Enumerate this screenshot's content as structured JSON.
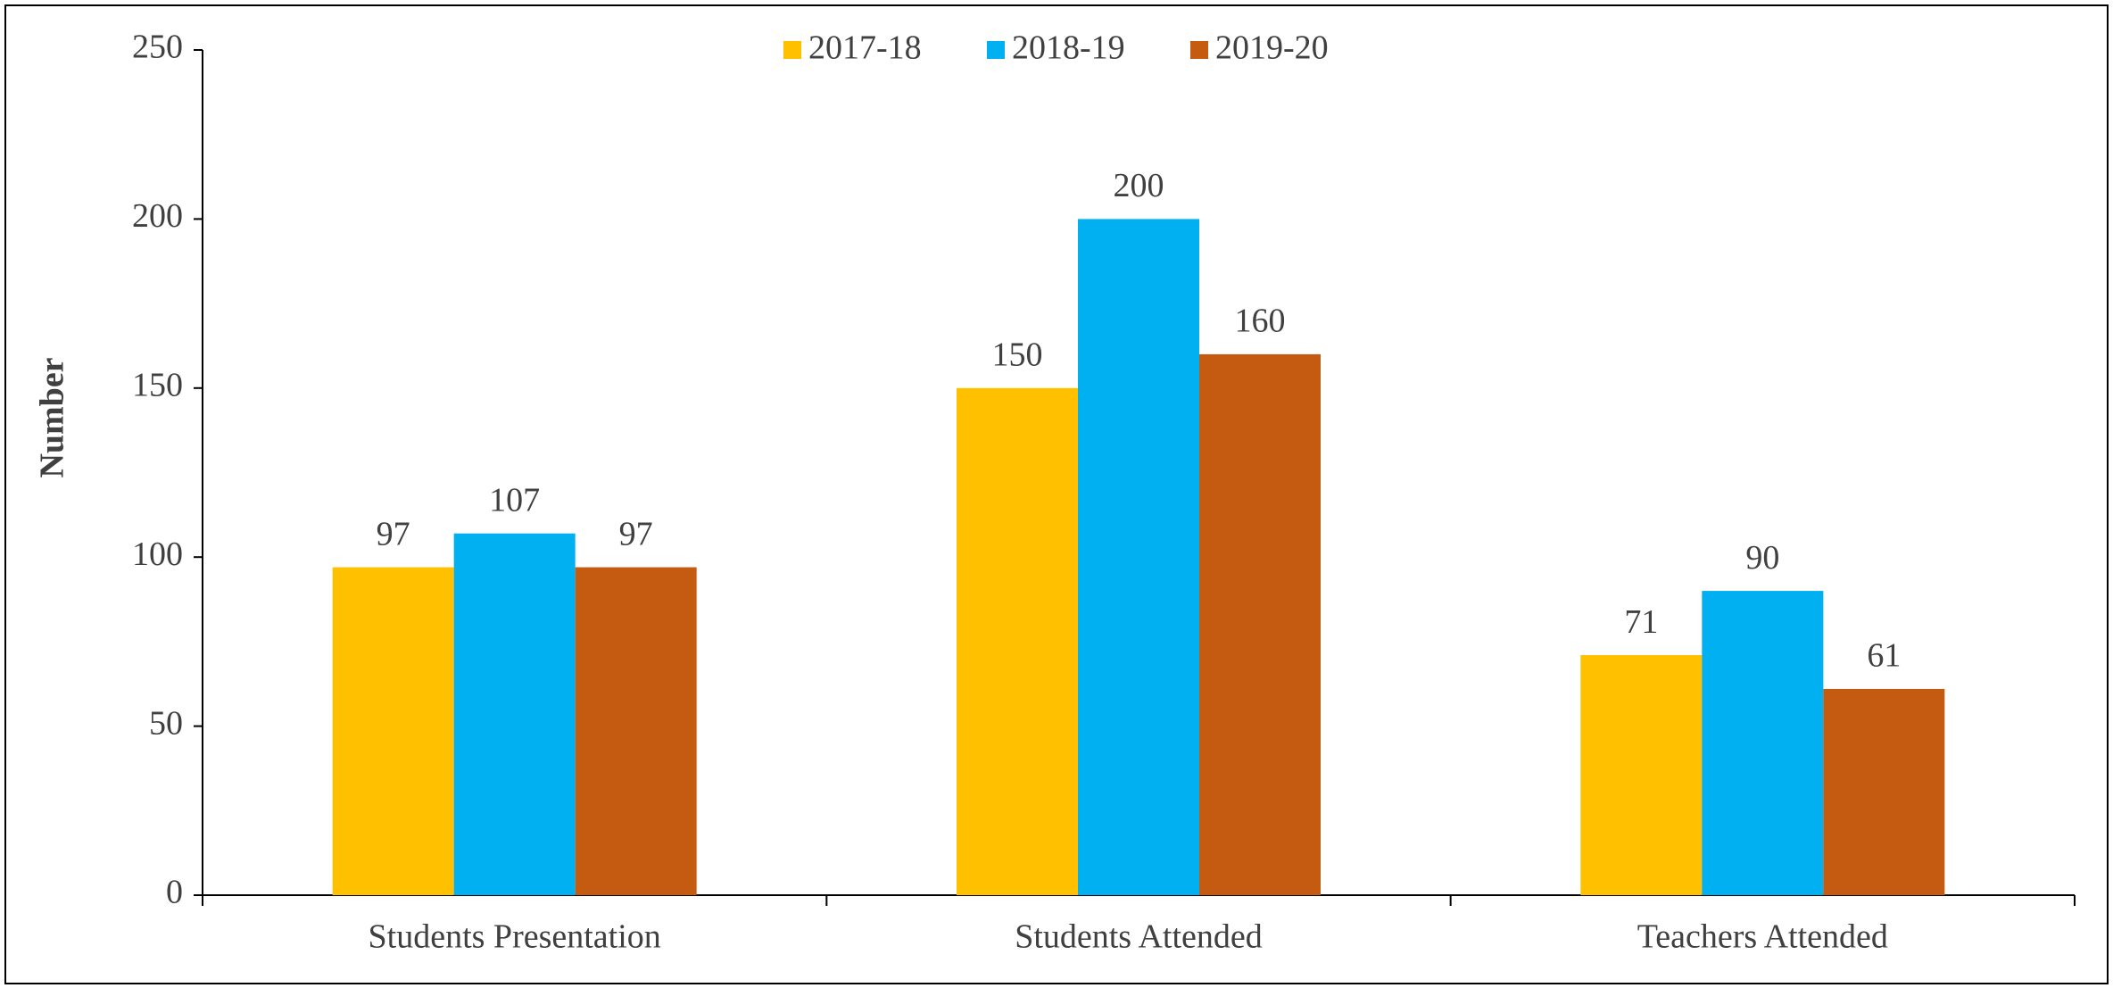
{
  "chart_data": {
    "type": "bar",
    "y_label": "Number",
    "categories": [
      "Students Presentation",
      "Students Attended",
      "Teachers Attended"
    ],
    "series": [
      {
        "name": "2017-18",
        "color": "#ffc000",
        "values": [
          97,
          150,
          71
        ]
      },
      {
        "name": "2018-19",
        "color": "#00b0f0",
        "values": [
          107,
          200,
          90
        ]
      },
      {
        "name": "2019-20",
        "color": "#c55a11",
        "values": [
          97,
          160,
          61
        ]
      }
    ],
    "ylim": [
      0,
      250
    ],
    "yticks": [
      0,
      50,
      100,
      150,
      200,
      250
    ],
    "grid": false,
    "legend": "top"
  }
}
